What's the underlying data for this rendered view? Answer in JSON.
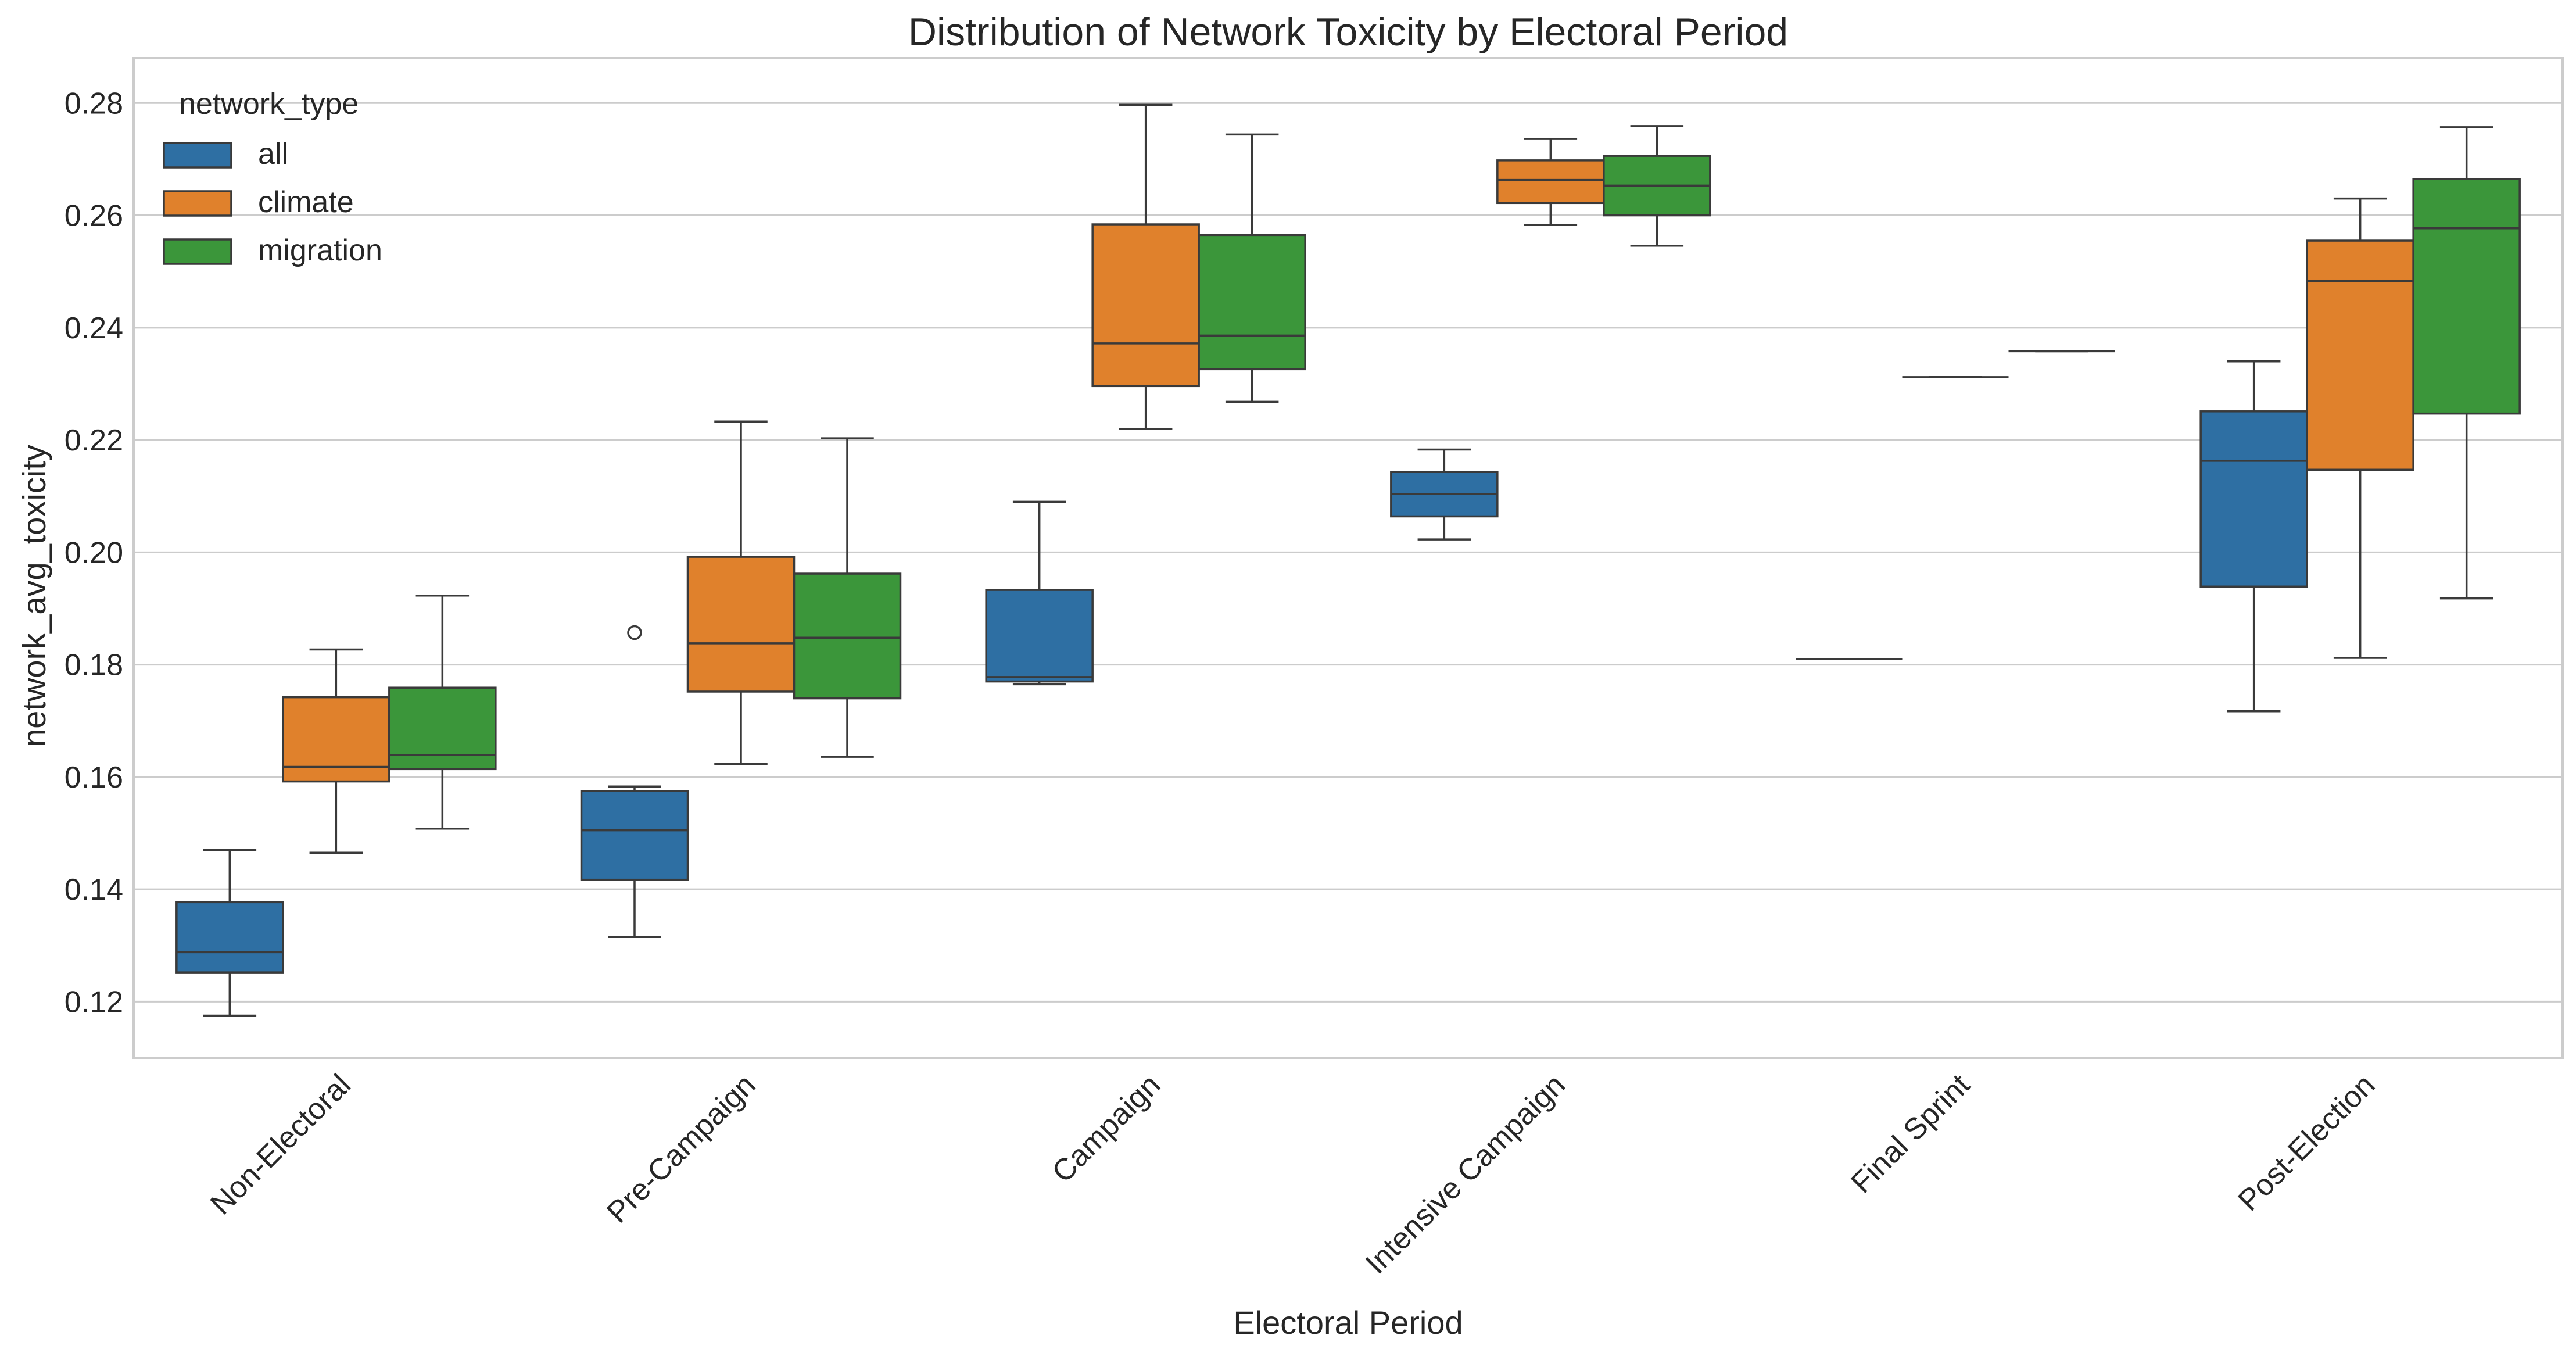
{
  "chart_data": {
    "type": "box",
    "title": "Distribution of Network Toxicity by Electoral Period",
    "xlabel": "Electoral Period",
    "ylabel": "network_avg_toxicity",
    "ylim": [
      0.11,
      0.288
    ],
    "yticks": [
      "0.12",
      "0.14",
      "0.16",
      "0.18",
      "0.20",
      "0.22",
      "0.24",
      "0.26",
      "0.28"
    ],
    "ytick_values": [
      0.12,
      0.14,
      0.16,
      0.18,
      0.2,
      0.22,
      0.24,
      0.26,
      0.28
    ],
    "grid": true,
    "legend": {
      "title": "network_type",
      "position": "top-left"
    },
    "categories": [
      "Non-Electoral",
      "Pre-Campaign",
      "Campaign",
      "Intensive Campaign",
      "Final Sprint",
      "Post-Election"
    ],
    "series": [
      {
        "name": "all",
        "color": "#2e6fa3",
        "boxes": [
          {
            "whislo": 0.1175,
            "q1": 0.1252,
            "med": 0.1288,
            "q3": 0.1377,
            "whishi": 0.147,
            "fliers": []
          },
          {
            "whislo": 0.1315,
            "q1": 0.1417,
            "med": 0.1505,
            "q3": 0.1575,
            "whishi": 0.1583,
            "fliers": [
              0.1857
            ]
          },
          {
            "whislo": 0.1765,
            "q1": 0.177,
            "med": 0.1778,
            "q3": 0.1933,
            "whishi": 0.209,
            "fliers": []
          },
          {
            "whislo": 0.2023,
            "q1": 0.2064,
            "med": 0.2104,
            "q3": 0.2143,
            "whishi": 0.2183,
            "fliers": []
          },
          {
            "whislo": 0.181,
            "q1": 0.181,
            "med": 0.181,
            "q3": 0.181,
            "whishi": 0.181,
            "fliers": []
          },
          {
            "whislo": 0.1717,
            "q1": 0.1939,
            "med": 0.2163,
            "q3": 0.2251,
            "whishi": 0.234,
            "fliers": []
          }
        ]
      },
      {
        "name": "climate",
        "color": "#e0812c",
        "boxes": [
          {
            "whislo": 0.1465,
            "q1": 0.1592,
            "med": 0.1618,
            "q3": 0.1742,
            "whishi": 0.1827,
            "fliers": []
          },
          {
            "whislo": 0.1623,
            "q1": 0.1752,
            "med": 0.1838,
            "q3": 0.1992,
            "whishi": 0.2233,
            "fliers": []
          },
          {
            "whislo": 0.222,
            "q1": 0.2296,
            "med": 0.2372,
            "q3": 0.2584,
            "whishi": 0.2797,
            "fliers": []
          },
          {
            "whislo": 0.2583,
            "q1": 0.2622,
            "med": 0.2663,
            "q3": 0.2698,
            "whishi": 0.2736,
            "fliers": []
          },
          {
            "whislo": 0.2312,
            "q1": 0.2312,
            "med": 0.2312,
            "q3": 0.2312,
            "whishi": 0.2312,
            "fliers": []
          },
          {
            "whislo": 0.1812,
            "q1": 0.2147,
            "med": 0.2483,
            "q3": 0.2555,
            "whishi": 0.263,
            "fliers": []
          }
        ]
      },
      {
        "name": "migration",
        "color": "#3b963a",
        "boxes": [
          {
            "whislo": 0.1508,
            "q1": 0.1614,
            "med": 0.1639,
            "q3": 0.1759,
            "whishi": 0.1923,
            "fliers": []
          },
          {
            "whislo": 0.1636,
            "q1": 0.174,
            "med": 0.1848,
            "q3": 0.1962,
            "whishi": 0.2203,
            "fliers": []
          },
          {
            "whislo": 0.2268,
            "q1": 0.2326,
            "med": 0.2386,
            "q3": 0.2565,
            "whishi": 0.2744,
            "fliers": []
          },
          {
            "whislo": 0.2546,
            "q1": 0.26,
            "med": 0.2653,
            "q3": 0.2706,
            "whishi": 0.2759,
            "fliers": []
          },
          {
            "whislo": 0.2358,
            "q1": 0.2358,
            "med": 0.2358,
            "q3": 0.2358,
            "whishi": 0.2358,
            "fliers": []
          },
          {
            "whislo": 0.1918,
            "q1": 0.2247,
            "med": 0.2577,
            "q3": 0.2665,
            "whishi": 0.2757,
            "fliers": []
          }
        ]
      }
    ]
  }
}
